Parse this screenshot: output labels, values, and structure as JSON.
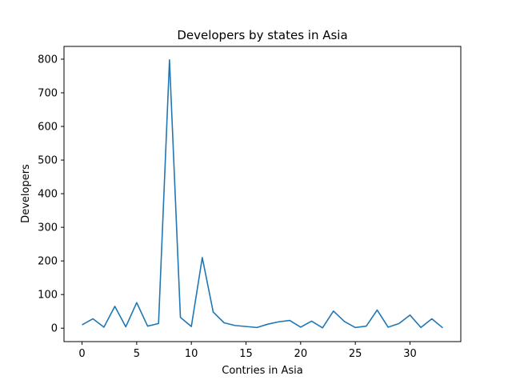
{
  "chart_data": {
    "type": "line",
    "title": "Developers by states in Asia",
    "xlabel": "Contries in Asia",
    "ylabel": "Developers",
    "x": [
      0,
      1,
      2,
      3,
      4,
      5,
      6,
      7,
      8,
      9,
      10,
      11,
      12,
      13,
      14,
      15,
      16,
      17,
      18,
      19,
      20,
      21,
      22,
      23,
      24,
      25,
      26,
      27,
      28,
      29,
      30,
      31,
      32,
      33
    ],
    "series": [
      {
        "values": [
          10,
          28,
          3,
          65,
          4,
          76,
          6,
          14,
          798,
          32,
          5,
          210,
          48,
          16,
          8,
          5,
          2,
          12,
          19,
          23,
          3,
          21,
          1,
          51,
          20,
          2,
          6,
          54,
          3,
          14,
          39,
          2,
          28,
          1
        ],
        "color": "#1f77b4"
      }
    ],
    "xlim": [
      -1.65,
      34.65
    ],
    "ylim": [
      -39.9,
      838
    ],
    "xticks": [
      0,
      5,
      10,
      15,
      20,
      25,
      30
    ],
    "yticks": [
      0,
      100,
      200,
      300,
      400,
      500,
      600,
      700,
      800
    ],
    "grid": false,
    "legend": "none"
  }
}
